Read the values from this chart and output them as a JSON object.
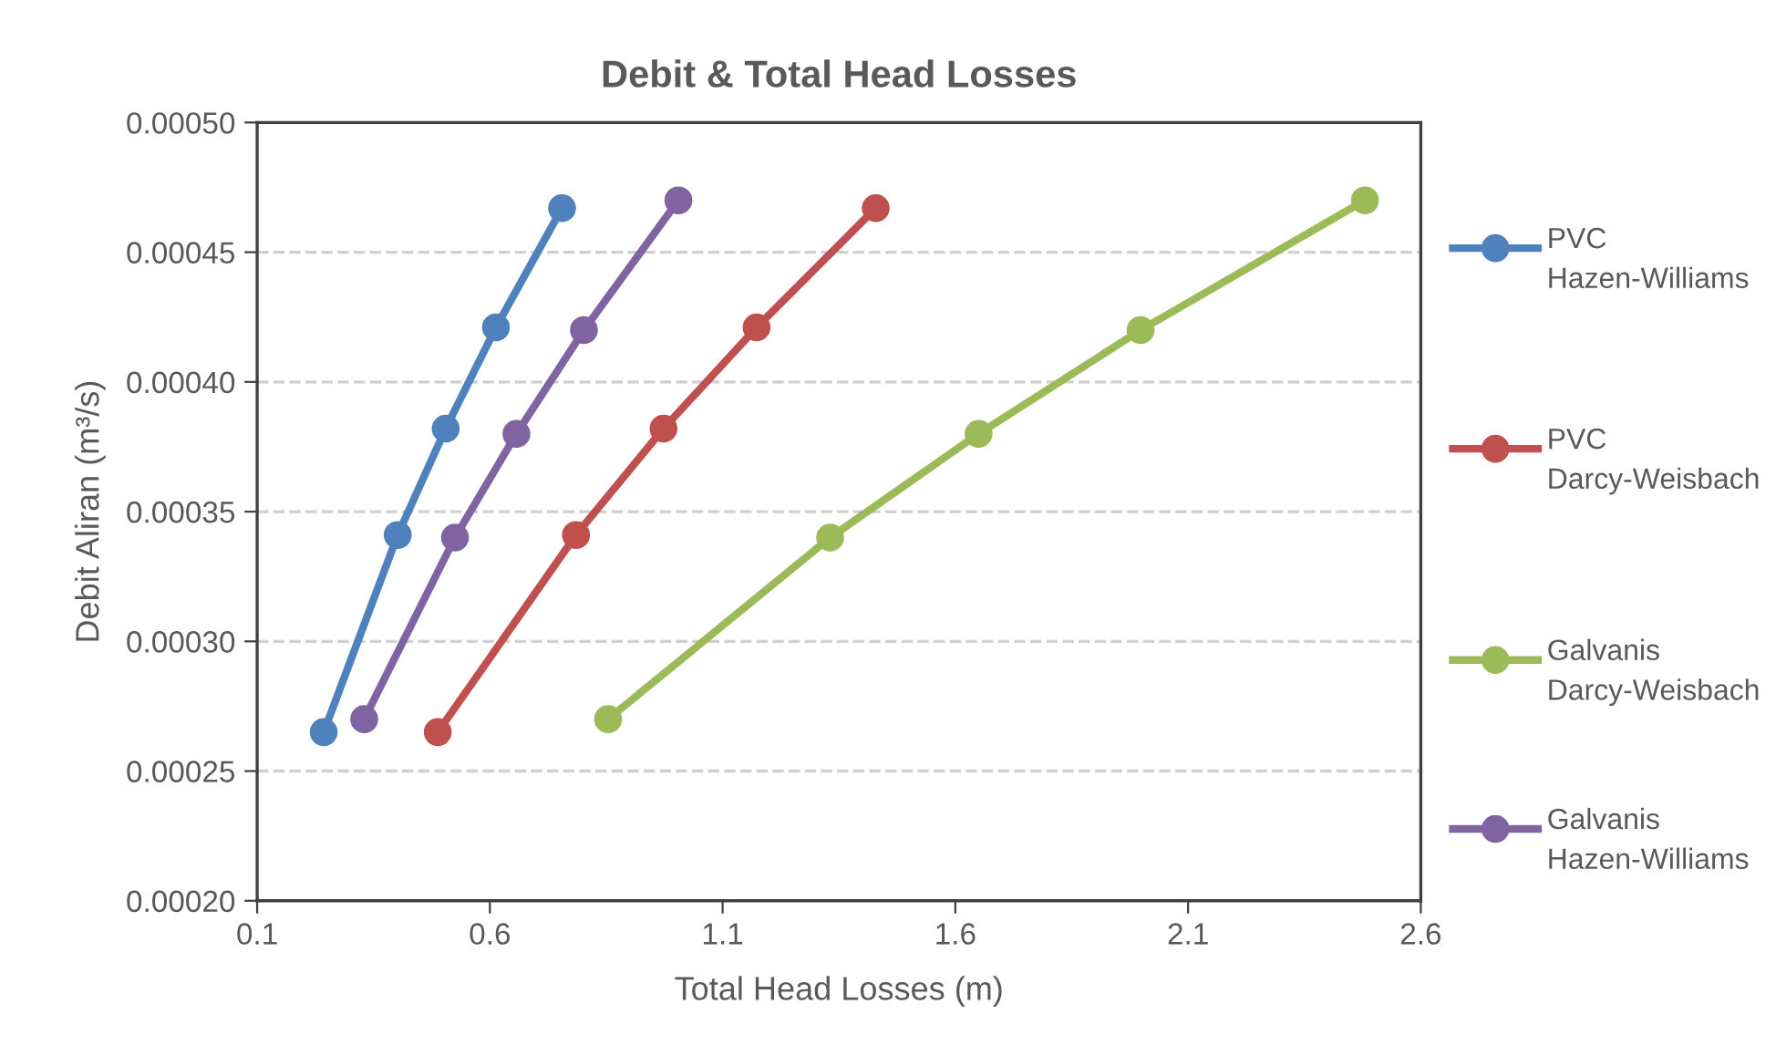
{
  "chart_data": {
    "type": "line",
    "title": "Debit & Total Head Losses",
    "xlabel": "Total Head Losses (m)",
    "ylabel": "Debit Aliran (m³/s)",
    "xlim": [
      0.1,
      2.6
    ],
    "xticks": [
      0.1,
      0.6,
      1.1,
      1.6,
      2.1,
      2.6
    ],
    "ylim": [
      0.0002,
      0.0005
    ],
    "yticks": [
      {
        "value": 0.0002,
        "label": "0.00020"
      },
      {
        "value": 0.00025,
        "label": "0.00025"
      },
      {
        "value": 0.0003,
        "label": "0.00030"
      },
      {
        "value": 0.00035,
        "label": "0.00035"
      },
      {
        "value": 0.0004,
        "label": "0.00040"
      },
      {
        "value": 0.00045,
        "label": "0.00045"
      },
      {
        "value": 0.0005,
        "label": "0.00050"
      }
    ],
    "grid": "y",
    "legend": "right",
    "marker": "circle",
    "line_style": "solid",
    "series": [
      {
        "name": "PVC Hazen-Williams",
        "color": "#4f81bd",
        "x": [
          0.243,
          0.402,
          0.505,
          0.613,
          0.755
        ],
        "values": [
          0.000265,
          0.000341,
          0.000382,
          0.000421,
          0.000467
        ]
      },
      {
        "name": "PVC Darcy-Weisbach",
        "color": "#c0504d",
        "x": [
          0.488,
          0.785,
          0.973,
          1.173,
          1.429
        ],
        "values": [
          0.000265,
          0.000341,
          0.000382,
          0.000421,
          0.000467
        ]
      },
      {
        "name": "Galvanis Darcy-Weisbach",
        "color": "#9bbb59",
        "x": [
          0.854,
          1.331,
          1.65,
          1.998,
          2.48
        ],
        "values": [
          0.00027,
          0.00034,
          0.00038,
          0.00042,
          0.00047
        ]
      },
      {
        "name": "Galvanis Hazen-Williams",
        "color": "#8064a2",
        "x": [
          0.33,
          0.525,
          0.657,
          0.802,
          1.005
        ],
        "values": [
          0.00027,
          0.00034,
          0.00038,
          0.00042,
          0.00047
        ]
      }
    ]
  }
}
